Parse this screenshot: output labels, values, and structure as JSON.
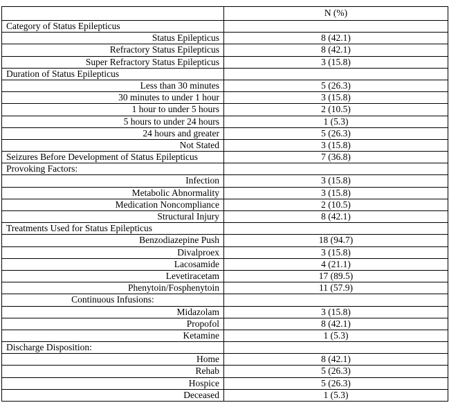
{
  "table": {
    "header": {
      "label_column": "",
      "value_column": "N (%)"
    },
    "rows": [
      {
        "label": "Category of Status Epilepticus",
        "value": "",
        "align": "left",
        "type": "section"
      },
      {
        "label": "Status Epilepticus",
        "value": "8 (42.1)",
        "align": "right",
        "type": "item"
      },
      {
        "label": "Refractory Status Epilepticus",
        "value": "8 (42.1)",
        "align": "right",
        "type": "item"
      },
      {
        "label": "Super Refractory Status Epilepticus",
        "value": "3 (15.8)",
        "align": "right",
        "type": "item"
      },
      {
        "label": "Duration of Status Epilepticus",
        "value": "",
        "align": "left",
        "type": "section"
      },
      {
        "label": "Less than 30 minutes",
        "value": "5 (26.3)",
        "align": "right",
        "type": "item"
      },
      {
        "label": "30 minutes to under 1 hour",
        "value": "3 (15.8)",
        "align": "right",
        "type": "item"
      },
      {
        "label": "1 hour to under 5 hours",
        "value": "2 (10.5)",
        "align": "right",
        "type": "item"
      },
      {
        "label": "5 hours to under 24 hours",
        "value": "1 (5.3)",
        "align": "right",
        "type": "item"
      },
      {
        "label": "24 hours and greater",
        "value": "5 (26.3)",
        "align": "right",
        "type": "item"
      },
      {
        "label": "Not Stated",
        "value": "3 (15.8)",
        "align": "right",
        "type": "item"
      },
      {
        "label": "Seizures Before Development of Status Epilepticus",
        "value": "7 (36.8)",
        "align": "left",
        "type": "section"
      },
      {
        "label": "Provoking Factors:",
        "value": "",
        "align": "left",
        "type": "section"
      },
      {
        "label": "Infection",
        "value": "3 (15.8)",
        "align": "right",
        "type": "item"
      },
      {
        "label": "Metabolic Abnormality",
        "value": "3 (15.8)",
        "align": "right",
        "type": "item"
      },
      {
        "label": "Medication Noncompliance",
        "value": "2 (10.5)",
        "align": "right",
        "type": "item"
      },
      {
        "label": "Structural Injury",
        "value": "8 (42.1)",
        "align": "right",
        "type": "item"
      },
      {
        "label": "Treatments Used for Status Epilepticus",
        "value": "",
        "align": "left",
        "type": "section"
      },
      {
        "label": "Benzodiazepine Push",
        "value": "18 (94.7)",
        "align": "right",
        "type": "item"
      },
      {
        "label": "Divalproex",
        "value": "3 (15.8)",
        "align": "right",
        "type": "item"
      },
      {
        "label": "Lacosamide",
        "value": "4 (21.1)",
        "align": "right",
        "type": "item"
      },
      {
        "label": "Levetiracetam",
        "value": "17 (89.5)",
        "align": "right",
        "type": "item"
      },
      {
        "label": "Phenytoin/Fosphenytoin",
        "value": "11 (57.9)",
        "align": "right",
        "type": "item"
      },
      {
        "label": "Continuous Infusions:",
        "value": "",
        "align": "center",
        "type": "subsection"
      },
      {
        "label": "Midazolam",
        "value": "3 (15.8)",
        "align": "right",
        "type": "item"
      },
      {
        "label": "Propofol",
        "value": "8 (42.1)",
        "align": "right",
        "type": "item"
      },
      {
        "label": "Ketamine",
        "value": "1 (5.3)",
        "align": "right",
        "type": "item"
      },
      {
        "label": "Discharge Disposition:",
        "value": "",
        "align": "left",
        "type": "section"
      },
      {
        "label": "Home",
        "value": "8 (42.1)",
        "align": "right",
        "type": "item"
      },
      {
        "label": "Rehab",
        "value": "5 (26.3)",
        "align": "right",
        "type": "item"
      },
      {
        "label": "Hospice",
        "value": "5 (26.3)",
        "align": "right",
        "type": "item"
      },
      {
        "label": "Deceased",
        "value": "1 (5.3)",
        "align": "right",
        "type": "item"
      }
    ]
  }
}
